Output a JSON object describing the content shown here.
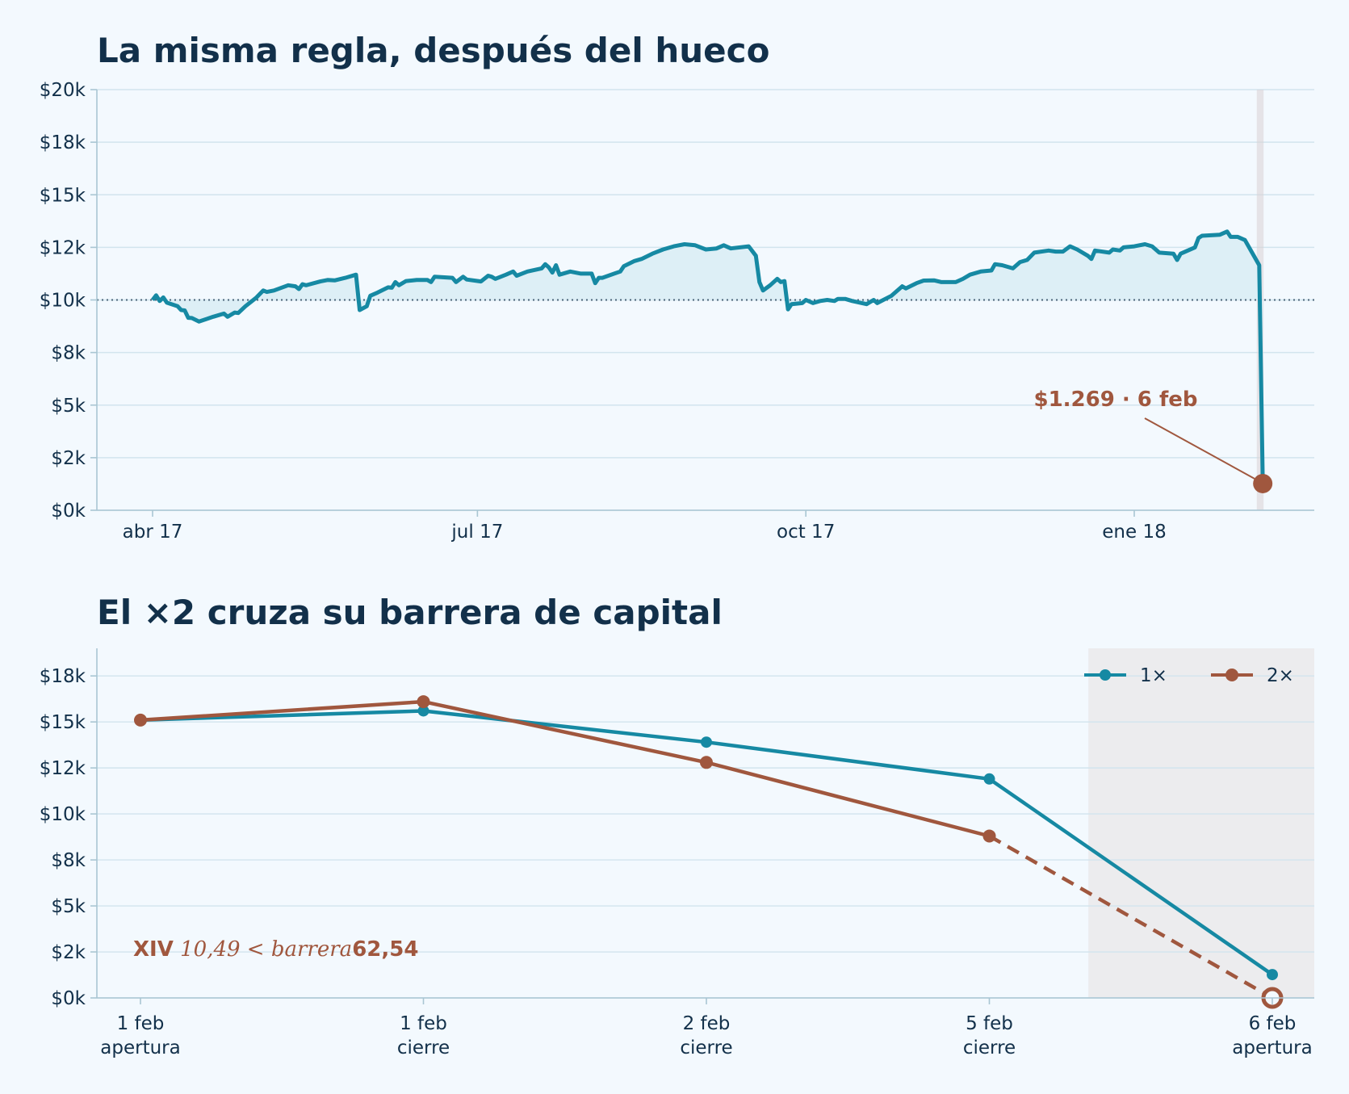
{
  "colors": {
    "background": "#f3f9fe",
    "teal": "#1689a3",
    "rust": "#a0573e",
    "fill": "#ddeff6",
    "grid": "#d2e4ee",
    "shade": "#ececee",
    "text": "#12304a"
  },
  "chart_data": [
    {
      "type": "area",
      "title": "La misma regla, después del hueco",
      "xlabel": "",
      "ylabel": "",
      "x_range": [
        "2017-03-01",
        "2018-02-14"
      ],
      "ylim": [
        0,
        20000
      ],
      "y_ticks": [
        {
          "value": 0,
          "label": "$0k"
        },
        {
          "value": 2500,
          "label": "$2k"
        },
        {
          "value": 5000,
          "label": "$5k"
        },
        {
          "value": 7500,
          "label": "$8k"
        },
        {
          "value": 10000,
          "label": "$10k"
        },
        {
          "value": 12500,
          "label": "$12k"
        },
        {
          "value": 15000,
          "label": "$15k"
        },
        {
          "value": 17500,
          "label": "$18k"
        },
        {
          "value": 20000,
          "label": "$20k"
        }
      ],
      "x_ticks": [
        {
          "value": "2017-04-01",
          "label": "abr 17"
        },
        {
          "value": "2017-07-01",
          "label": "jul 17"
        },
        {
          "value": "2017-10-01",
          "label": "oct 17"
        },
        {
          "value": "2018-01-01",
          "label": "ene 18"
        }
      ],
      "baseline": 10000,
      "grid": true,
      "shaded_span": [
        "2018-02-05",
        "2018-02-06"
      ],
      "series": [
        {
          "points": [
            [
              "2017-04-01",
              10000
            ],
            [
              "2017-04-02",
              10220
            ],
            [
              "2017-04-03",
              9950
            ],
            [
              "2017-04-04",
              10120
            ],
            [
              "2017-04-05",
              9870
            ],
            [
              "2017-04-08",
              9700
            ],
            [
              "2017-04-09",
              9520
            ],
            [
              "2017-04-10",
              9500
            ],
            [
              "2017-04-11",
              9150
            ],
            [
              "2017-04-12",
              9140
            ],
            [
              "2017-04-14",
              8970
            ],
            [
              "2017-04-18",
              9200
            ],
            [
              "2017-04-21",
              9350
            ],
            [
              "2017-04-22",
              9200
            ],
            [
              "2017-04-24",
              9400
            ],
            [
              "2017-04-25",
              9380
            ],
            [
              "2017-04-27",
              9700
            ],
            [
              "2017-04-30",
              10100
            ],
            [
              "2017-05-02",
              10450
            ],
            [
              "2017-05-03",
              10380
            ],
            [
              "2017-05-05",
              10450
            ],
            [
              "2017-05-09",
              10700
            ],
            [
              "2017-05-11",
              10650
            ],
            [
              "2017-05-12",
              10520
            ],
            [
              "2017-05-13",
              10750
            ],
            [
              "2017-05-14",
              10700
            ],
            [
              "2017-05-18",
              10880
            ],
            [
              "2017-05-20",
              10950
            ],
            [
              "2017-05-22",
              10930
            ],
            [
              "2017-05-25",
              11050
            ],
            [
              "2017-05-28",
              11200
            ],
            [
              "2017-05-29",
              9520
            ],
            [
              "2017-05-31",
              9700
            ],
            [
              "2017-06-01",
              10200
            ],
            [
              "2017-06-03",
              10350
            ],
            [
              "2017-06-06",
              10600
            ],
            [
              "2017-06-07",
              10580
            ],
            [
              "2017-06-08",
              10850
            ],
            [
              "2017-06-09",
              10700
            ],
            [
              "2017-06-11",
              10900
            ],
            [
              "2017-06-14",
              10950
            ],
            [
              "2017-06-17",
              10950
            ],
            [
              "2017-06-18",
              10850
            ],
            [
              "2017-06-19",
              11100
            ],
            [
              "2017-06-24",
              11050
            ],
            [
              "2017-06-25",
              10850
            ],
            [
              "2017-06-27",
              11100
            ],
            [
              "2017-06-28",
              10970
            ],
            [
              "2017-07-02",
              10880
            ],
            [
              "2017-07-04",
              11150
            ],
            [
              "2017-07-05",
              11100
            ],
            [
              "2017-07-06",
              11000
            ],
            [
              "2017-07-09",
              11200
            ],
            [
              "2017-07-11",
              11350
            ],
            [
              "2017-07-12",
              11150
            ],
            [
              "2017-07-15",
              11350
            ],
            [
              "2017-07-19",
              11500
            ],
            [
              "2017-07-20",
              11700
            ],
            [
              "2017-07-21",
              11550
            ],
            [
              "2017-07-22",
              11300
            ],
            [
              "2017-07-23",
              11650
            ],
            [
              "2017-07-24",
              11200
            ],
            [
              "2017-07-27",
              11350
            ],
            [
              "2017-07-30",
              11250
            ],
            [
              "2017-08-02",
              11250
            ],
            [
              "2017-08-03",
              10800
            ],
            [
              "2017-08-04",
              11050
            ],
            [
              "2017-08-05",
              11050
            ],
            [
              "2017-08-10",
              11350
            ],
            [
              "2017-08-11",
              11600
            ],
            [
              "2017-08-14",
              11850
            ],
            [
              "2017-08-16",
              11950
            ],
            [
              "2017-08-19",
              12200
            ],
            [
              "2017-08-22",
              12400
            ],
            [
              "2017-08-25",
              12550
            ],
            [
              "2017-08-28",
              12650
            ],
            [
              "2017-08-31",
              12600
            ],
            [
              "2017-09-03",
              12400
            ],
            [
              "2017-09-06",
              12450
            ],
            [
              "2017-09-08",
              12600
            ],
            [
              "2017-09-10",
              12450
            ],
            [
              "2017-09-15",
              12550
            ],
            [
              "2017-09-17",
              12100
            ],
            [
              "2017-09-18",
              10850
            ],
            [
              "2017-09-19",
              10450
            ],
            [
              "2017-09-21",
              10700
            ],
            [
              "2017-09-23",
              11000
            ],
            [
              "2017-09-24",
              10850
            ],
            [
              "2017-09-25",
              10900
            ],
            [
              "2017-09-26",
              9550
            ],
            [
              "2017-09-27",
              9800
            ],
            [
              "2017-09-30",
              9850
            ],
            [
              "2017-10-01",
              10000
            ],
            [
              "2017-10-03",
              9850
            ],
            [
              "2017-10-05",
              9950
            ],
            [
              "2017-10-07",
              10000
            ],
            [
              "2017-10-09",
              9950
            ],
            [
              "2017-10-10",
              10050
            ],
            [
              "2017-10-12",
              10050
            ],
            [
              "2017-10-14",
              9950
            ],
            [
              "2017-10-18",
              9800
            ],
            [
              "2017-10-20",
              10000
            ],
            [
              "2017-10-21",
              9850
            ],
            [
              "2017-10-25",
              10200
            ],
            [
              "2017-10-28",
              10650
            ],
            [
              "2017-10-29",
              10550
            ],
            [
              "2017-11-01",
              10800
            ],
            [
              "2017-11-03",
              10920
            ],
            [
              "2017-11-06",
              10930
            ],
            [
              "2017-11-08",
              10850
            ],
            [
              "2017-11-12",
              10850
            ],
            [
              "2017-11-14",
              11000
            ],
            [
              "2017-11-16",
              11200
            ],
            [
              "2017-11-19",
              11350
            ],
            [
              "2017-11-22",
              11400
            ],
            [
              "2017-11-23",
              11700
            ],
            [
              "2017-11-25",
              11650
            ],
            [
              "2017-11-28",
              11500
            ],
            [
              "2017-11-30",
              11800
            ],
            [
              "2017-12-02",
              11900
            ],
            [
              "2017-12-04",
              12250
            ],
            [
              "2017-12-08",
              12350
            ],
            [
              "2017-12-10",
              12300
            ],
            [
              "2017-12-12",
              12300
            ],
            [
              "2017-12-14",
              12550
            ],
            [
              "2017-12-16",
              12400
            ],
            [
              "2017-12-19",
              12100
            ],
            [
              "2017-12-20",
              11950
            ],
            [
              "2017-12-21",
              12350
            ],
            [
              "2017-12-25",
              12250
            ],
            [
              "2017-12-26",
              12400
            ],
            [
              "2017-12-28",
              12350
            ],
            [
              "2017-12-29",
              12500
            ],
            [
              "2018-01-01",
              12550
            ],
            [
              "2018-01-04",
              12650
            ],
            [
              "2018-01-06",
              12550
            ],
            [
              "2018-01-08",
              12250
            ],
            [
              "2018-01-12",
              12200
            ],
            [
              "2018-01-13",
              11900
            ],
            [
              "2018-01-14",
              12200
            ],
            [
              "2018-01-18",
              12500
            ],
            [
              "2018-01-19",
              12950
            ],
            [
              "2018-01-20",
              13050
            ],
            [
              "2018-01-25",
              13100
            ],
            [
              "2018-01-27",
              13250
            ],
            [
              "2018-01-28",
              13000
            ],
            [
              "2018-01-30",
              13000
            ],
            [
              "2018-02-01",
              12850
            ],
            [
              "2018-02-05",
              11650
            ],
            [
              "2018-02-06",
              1269
            ]
          ]
        }
      ],
      "annotation": {
        "x": "2018-02-06",
        "y": 1269,
        "text": "$1.269 · 6 feb"
      }
    },
    {
      "type": "line",
      "title": "El ×2 cruza su barrera de capital",
      "xlabel": "",
      "ylabel": "",
      "categories": [
        "1 feb\napertura",
        "1 feb\ncierre",
        "2 feb\ncierre",
        "5 feb\ncierre",
        "6 feb\napertura"
      ],
      "ylim": [
        0,
        19000
      ],
      "y_ticks": [
        {
          "value": 0,
          "label": "$0k"
        },
        {
          "value": 2500,
          "label": "$2k"
        },
        {
          "value": 5000,
          "label": "$5k"
        },
        {
          "value": 7500,
          "label": "$8k"
        },
        {
          "value": 10000,
          "label": "$10k"
        },
        {
          "value": 12500,
          "label": "$12k"
        },
        {
          "value": 15000,
          "label": "$15k"
        },
        {
          "value": 17500,
          "label": "$18k"
        }
      ],
      "grid": true,
      "legend": "top-right",
      "shaded_category_span": [
        3.35,
        4.15
      ],
      "series": [
        {
          "name": "1×",
          "color": "#1689a3",
          "values": [
            15100,
            15600,
            13900,
            11900,
            1269
          ]
        },
        {
          "name": "2×",
          "color": "#a0573e",
          "values": [
            15100,
            16100,
            12800,
            8800,
            0
          ],
          "dashed_from": 3,
          "final_marker": "hollow"
        }
      ],
      "annotation": {
        "category": 0,
        "y": 2500,
        "bold": "XIV",
        "italic": " 10,49 < barrera",
        "value": "62,54"
      }
    }
  ]
}
